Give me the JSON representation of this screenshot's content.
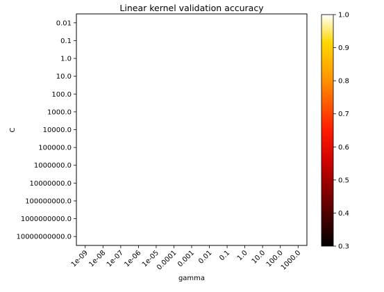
{
  "chart_data": {
    "type": "heatmap",
    "title": "Linear kernel validation accuracy",
    "xlabel": "gamma",
    "ylabel": "C",
    "x_categories": [
      "1e-09",
      "1e-08",
      "1e-07",
      "1e-06",
      "1e-05",
      "0.0001",
      "0.001",
      "0.01",
      "0.1",
      "1.0",
      "10.0",
      "100.0",
      "1000.0"
    ],
    "y_categories": [
      "0.01",
      "0.1",
      "1.0",
      "10.0",
      "100.0",
      "1000.0",
      "10000.0",
      "100000.0",
      "1000000.0",
      "10000000.0",
      "100000000.0",
      "1000000000.0",
      "10000000000.0"
    ],
    "values": [],
    "colormap": "hot",
    "colorbar": {
      "range": [
        0.3,
        1.0
      ],
      "ticks": [
        "0.3",
        "0.4",
        "0.5",
        "0.6",
        "0.7",
        "0.8",
        "0.9",
        "1.0"
      ]
    },
    "grid": false
  }
}
